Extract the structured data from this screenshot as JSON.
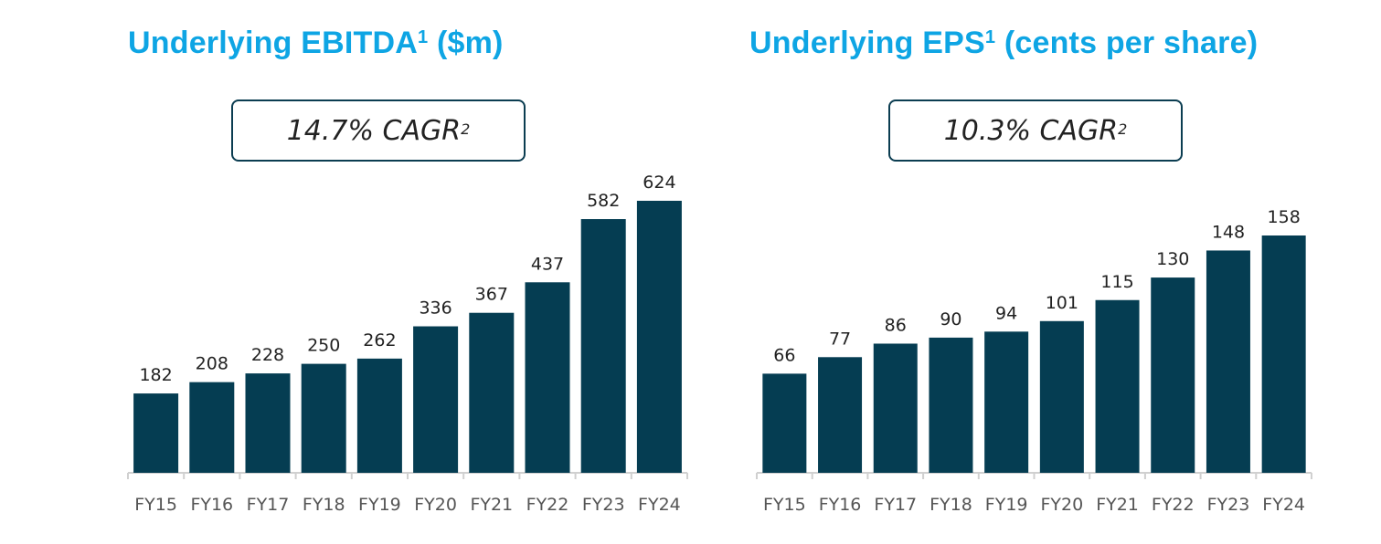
{
  "chart_data": [
    {
      "type": "bar",
      "title_main": "Underlying EBITDA",
      "title_sup": "1",
      "title_suffix": " ($m)",
      "annotation_main": "14.7% CAGR",
      "annotation_sup": "2",
      "categories": [
        "FY15",
        "FY16",
        "FY17",
        "FY18",
        "FY19",
        "FY20",
        "FY21",
        "FY22",
        "FY23",
        "FY24"
      ],
      "values": [
        182,
        208,
        228,
        250,
        262,
        336,
        367,
        437,
        582,
        624
      ],
      "xlabel": "",
      "ylabel": "",
      "bar_color": "#053d52"
    },
    {
      "type": "bar",
      "title_main": "Underlying EPS",
      "title_sup": "1",
      "title_suffix": " (cents per share)",
      "annotation_main": "10.3% CAGR",
      "annotation_sup": "2",
      "categories": [
        "FY15",
        "FY16",
        "FY17",
        "FY18",
        "FY19",
        "FY20",
        "FY21",
        "FY22",
        "FY23",
        "FY24"
      ],
      "values": [
        66,
        77,
        86,
        90,
        94,
        101,
        115,
        130,
        148,
        158
      ],
      "xlabel": "",
      "ylabel": "",
      "bar_color": "#053d52"
    }
  ],
  "colors": {
    "title": "#0ea5e4",
    "bar": "#053d52",
    "axis": "#d0d0d0"
  }
}
